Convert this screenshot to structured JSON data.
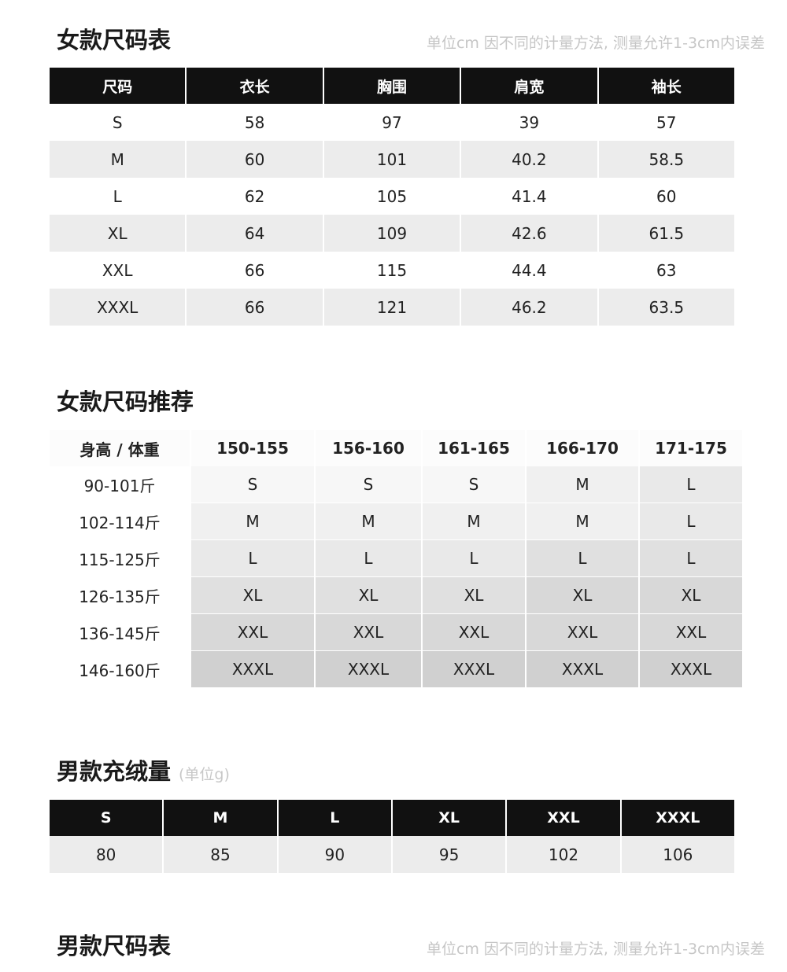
{
  "women_size": {
    "title": "女款尺码表",
    "note": "单位cm 因不同的计量方法, 测量允许1-3cm内误差",
    "headers": [
      "尺码",
      "衣长",
      "胸围",
      "肩宽",
      "袖长"
    ],
    "rows": [
      [
        "S",
        "58",
        "97",
        "39",
        "57"
      ],
      [
        "M",
        "60",
        "101",
        "40.2",
        "58.5"
      ],
      [
        "L",
        "62",
        "105",
        "41.4",
        "60"
      ],
      [
        "XL",
        "64",
        "109",
        "42.6",
        "61.5"
      ],
      [
        "XXL",
        "66",
        "115",
        "44.4",
        "63"
      ],
      [
        "XXXL",
        "66",
        "121",
        "46.2",
        "63.5"
      ]
    ]
  },
  "women_recommend": {
    "title": "女款尺码推荐",
    "headers": [
      "身高 / 体重",
      "150-155",
      "156-160",
      "161-165",
      "166-170",
      "171-175"
    ],
    "rows": [
      [
        "90-101斤",
        "S",
        "S",
        "S",
        "M",
        "L"
      ],
      [
        "102-114斤",
        "M",
        "M",
        "M",
        "M",
        "L"
      ],
      [
        "115-125斤",
        "L",
        "L",
        "L",
        "L",
        "L"
      ],
      [
        "126-135斤",
        "XL",
        "XL",
        "XL",
        "XL",
        "XL"
      ],
      [
        "136-145斤",
        "XXL",
        "XXL",
        "XXL",
        "XXL",
        "XXL"
      ],
      [
        "146-160斤",
        "XXXL",
        "XXXL",
        "XXXL",
        "XXXL",
        "XXXL"
      ]
    ],
    "shade_colors": [
      "#f7f7f7",
      "#f0f0f0",
      "#e9e9e9",
      "#e0e0e0",
      "#d8d8d8",
      "#d0d0d0"
    ]
  },
  "men_down": {
    "title": "男款充绒量",
    "unit": "(单位g)",
    "headers": [
      "S",
      "M",
      "L",
      "XL",
      "XXL",
      "XXXL"
    ],
    "values": [
      "80",
      "85",
      "90",
      "95",
      "102",
      "106"
    ]
  },
  "men_size": {
    "title": "男款尺码表",
    "note": "单位cm 因不同的计量方法, 测量允许1-3cm内误差"
  }
}
